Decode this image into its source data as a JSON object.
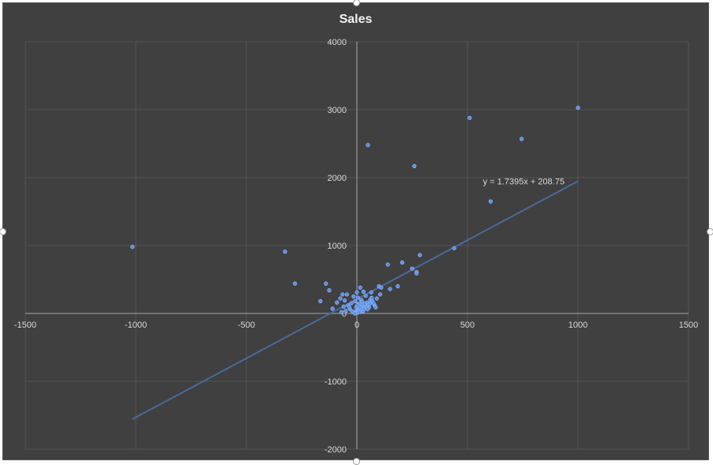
{
  "chart_data": {
    "type": "scatter",
    "title": "Sales",
    "xlim": [
      -1500,
      1500
    ],
    "ylim": [
      -2000,
      4000
    ],
    "x_ticks": [
      -1500,
      -1000,
      -500,
      0,
      500,
      1000,
      1500
    ],
    "y_ticks": [
      -2000,
      -1000,
      0,
      1000,
      2000,
      3000,
      4000
    ],
    "grid": true,
    "legend": "none",
    "marker_color": "#5b8fe8",
    "trendline_color": "#4a6a9a",
    "trendline": {
      "slope": 1.7395,
      "intercept": 208.75,
      "x_range": [
        -1015,
        1000
      ],
      "label": "y = 1.7395x + 208.75"
    },
    "points": [
      [
        -1015,
        980
      ],
      [
        -325,
        910
      ],
      [
        -280,
        440
      ],
      [
        -140,
        440
      ],
      [
        -125,
        340
      ],
      [
        -165,
        180
      ],
      [
        -110,
        70
      ],
      [
        -90,
        160
      ],
      [
        -75,
        220
      ],
      [
        -65,
        280
      ],
      [
        -45,
        280
      ],
      [
        -55,
        190
      ],
      [
        -40,
        120
      ],
      [
        -30,
        60
      ],
      [
        -20,
        30
      ],
      [
        -15,
        250
      ],
      [
        -8,
        180
      ],
      [
        0,
        310
      ],
      [
        5,
        230
      ],
      [
        10,
        140
      ],
      [
        15,
        380
      ],
      [
        20,
        200
      ],
      [
        25,
        100
      ],
      [
        30,
        320
      ],
      [
        40,
        260
      ],
      [
        45,
        160
      ],
      [
        50,
        120
      ],
      [
        55,
        90
      ],
      [
        60,
        200
      ],
      [
        65,
        310
      ],
      [
        70,
        180
      ],
      [
        80,
        120
      ],
      [
        90,
        220
      ],
      [
        100,
        400
      ],
      [
        110,
        380
      ],
      [
        105,
        280
      ],
      [
        150,
        360
      ],
      [
        185,
        400
      ],
      [
        140,
        720
      ],
      [
        205,
        750
      ],
      [
        250,
        660
      ],
      [
        270,
        610
      ],
      [
        270,
        590
      ],
      [
        285,
        860
      ],
      [
        440,
        960
      ],
      [
        50,
        2480
      ],
      [
        260,
        2170
      ],
      [
        510,
        2880
      ],
      [
        605,
        1650
      ],
      [
        745,
        2570
      ],
      [
        1000,
        3030
      ],
      [
        -5,
        30
      ],
      [
        0,
        10
      ],
      [
        5,
        60
      ],
      [
        8,
        40
      ],
      [
        12,
        20
      ],
      [
        18,
        80
      ],
      [
        22,
        50
      ],
      [
        28,
        30
      ],
      [
        32,
        70
      ],
      [
        36,
        110
      ],
      [
        -3,
        90
      ],
      [
        -10,
        0
      ],
      [
        2,
        120
      ],
      [
        14,
        150
      ],
      [
        24,
        170
      ],
      [
        34,
        140
      ],
      [
        44,
        90
      ],
      [
        48,
        60
      ],
      [
        58,
        140
      ],
      [
        66,
        230
      ],
      [
        75,
        150
      ],
      [
        85,
        90
      ],
      [
        -25,
        150
      ],
      [
        -35,
        90
      ],
      [
        -50,
        40
      ],
      [
        -60,
        100
      ],
      [
        -70,
        20
      ]
    ]
  }
}
